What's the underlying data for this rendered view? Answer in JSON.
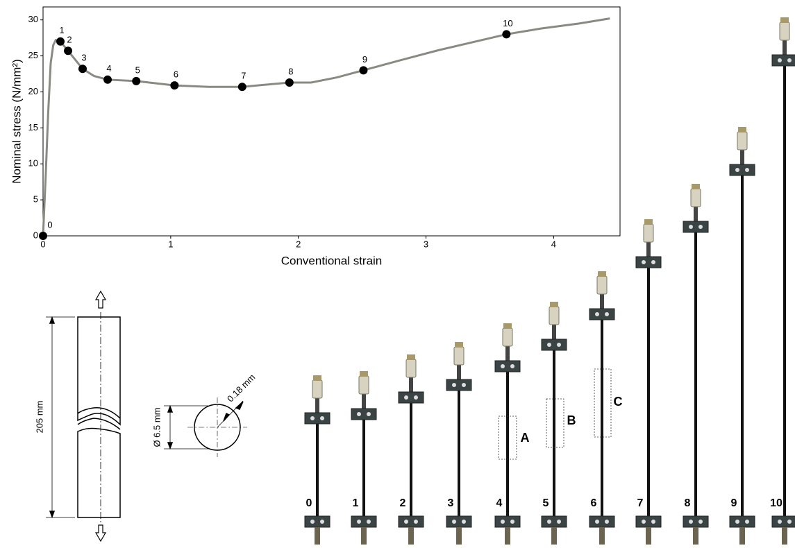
{
  "chart_data": {
    "type": "line",
    "xlabel": "Conventional strain",
    "ylabel": "Nominal stress (N/mm²)",
    "xlim": [
      0,
      4.52
    ],
    "ylim": [
      0,
      31.8
    ],
    "xticks": [
      0,
      1,
      2,
      3,
      4
    ],
    "yticks": [
      0,
      5,
      10,
      15,
      20,
      25,
      30
    ],
    "series": [
      {
        "color": "#8a8a82",
        "x": [
          0,
          0.02,
          0.04,
          0.06,
          0.08,
          0.1,
          0.136,
          0.196,
          0.31,
          0.4,
          0.506,
          0.73,
          1.03,
          1.3,
          1.56,
          1.93,
          2.1,
          2.3,
          2.51,
          2.8,
          3.1,
          3.63,
          3.9,
          4.2,
          4.44
        ],
        "values": [
          0,
          8,
          17,
          24,
          26.5,
          27.2,
          27.0,
          25.7,
          23.2,
          22.2,
          21.7,
          21.5,
          20.9,
          20.7,
          20.7,
          21.3,
          21.3,
          22.0,
          23.0,
          24.4,
          25.8,
          28.0,
          28.8,
          29.5,
          30.2
        ]
      },
      {
        "color": "#000000",
        "x": [
          0,
          0.136,
          0.196,
          0.31,
          0.506,
          0.73,
          1.03,
          1.56,
          1.93,
          2.51,
          3.63
        ],
        "values": [
          0,
          27.0,
          25.7,
          23.2,
          21.7,
          21.5,
          20.9,
          20.7,
          21.3,
          23.0,
          28.0
        ],
        "point_labels": [
          "0",
          "1",
          "2",
          "3",
          "4",
          "5",
          "6",
          "7",
          "8",
          "9",
          "10"
        ]
      }
    ]
  },
  "diagram": {
    "length_label": "205 mm",
    "diameter_label": "Ø 6.5 mm",
    "thickness_label": "0.18 mm"
  },
  "specimens": {
    "labels": [
      "0",
      "1",
      "2",
      "3",
      "4",
      "5",
      "6",
      "7",
      "8",
      "9",
      "10"
    ],
    "zones": [
      "A",
      "B",
      "C"
    ]
  }
}
